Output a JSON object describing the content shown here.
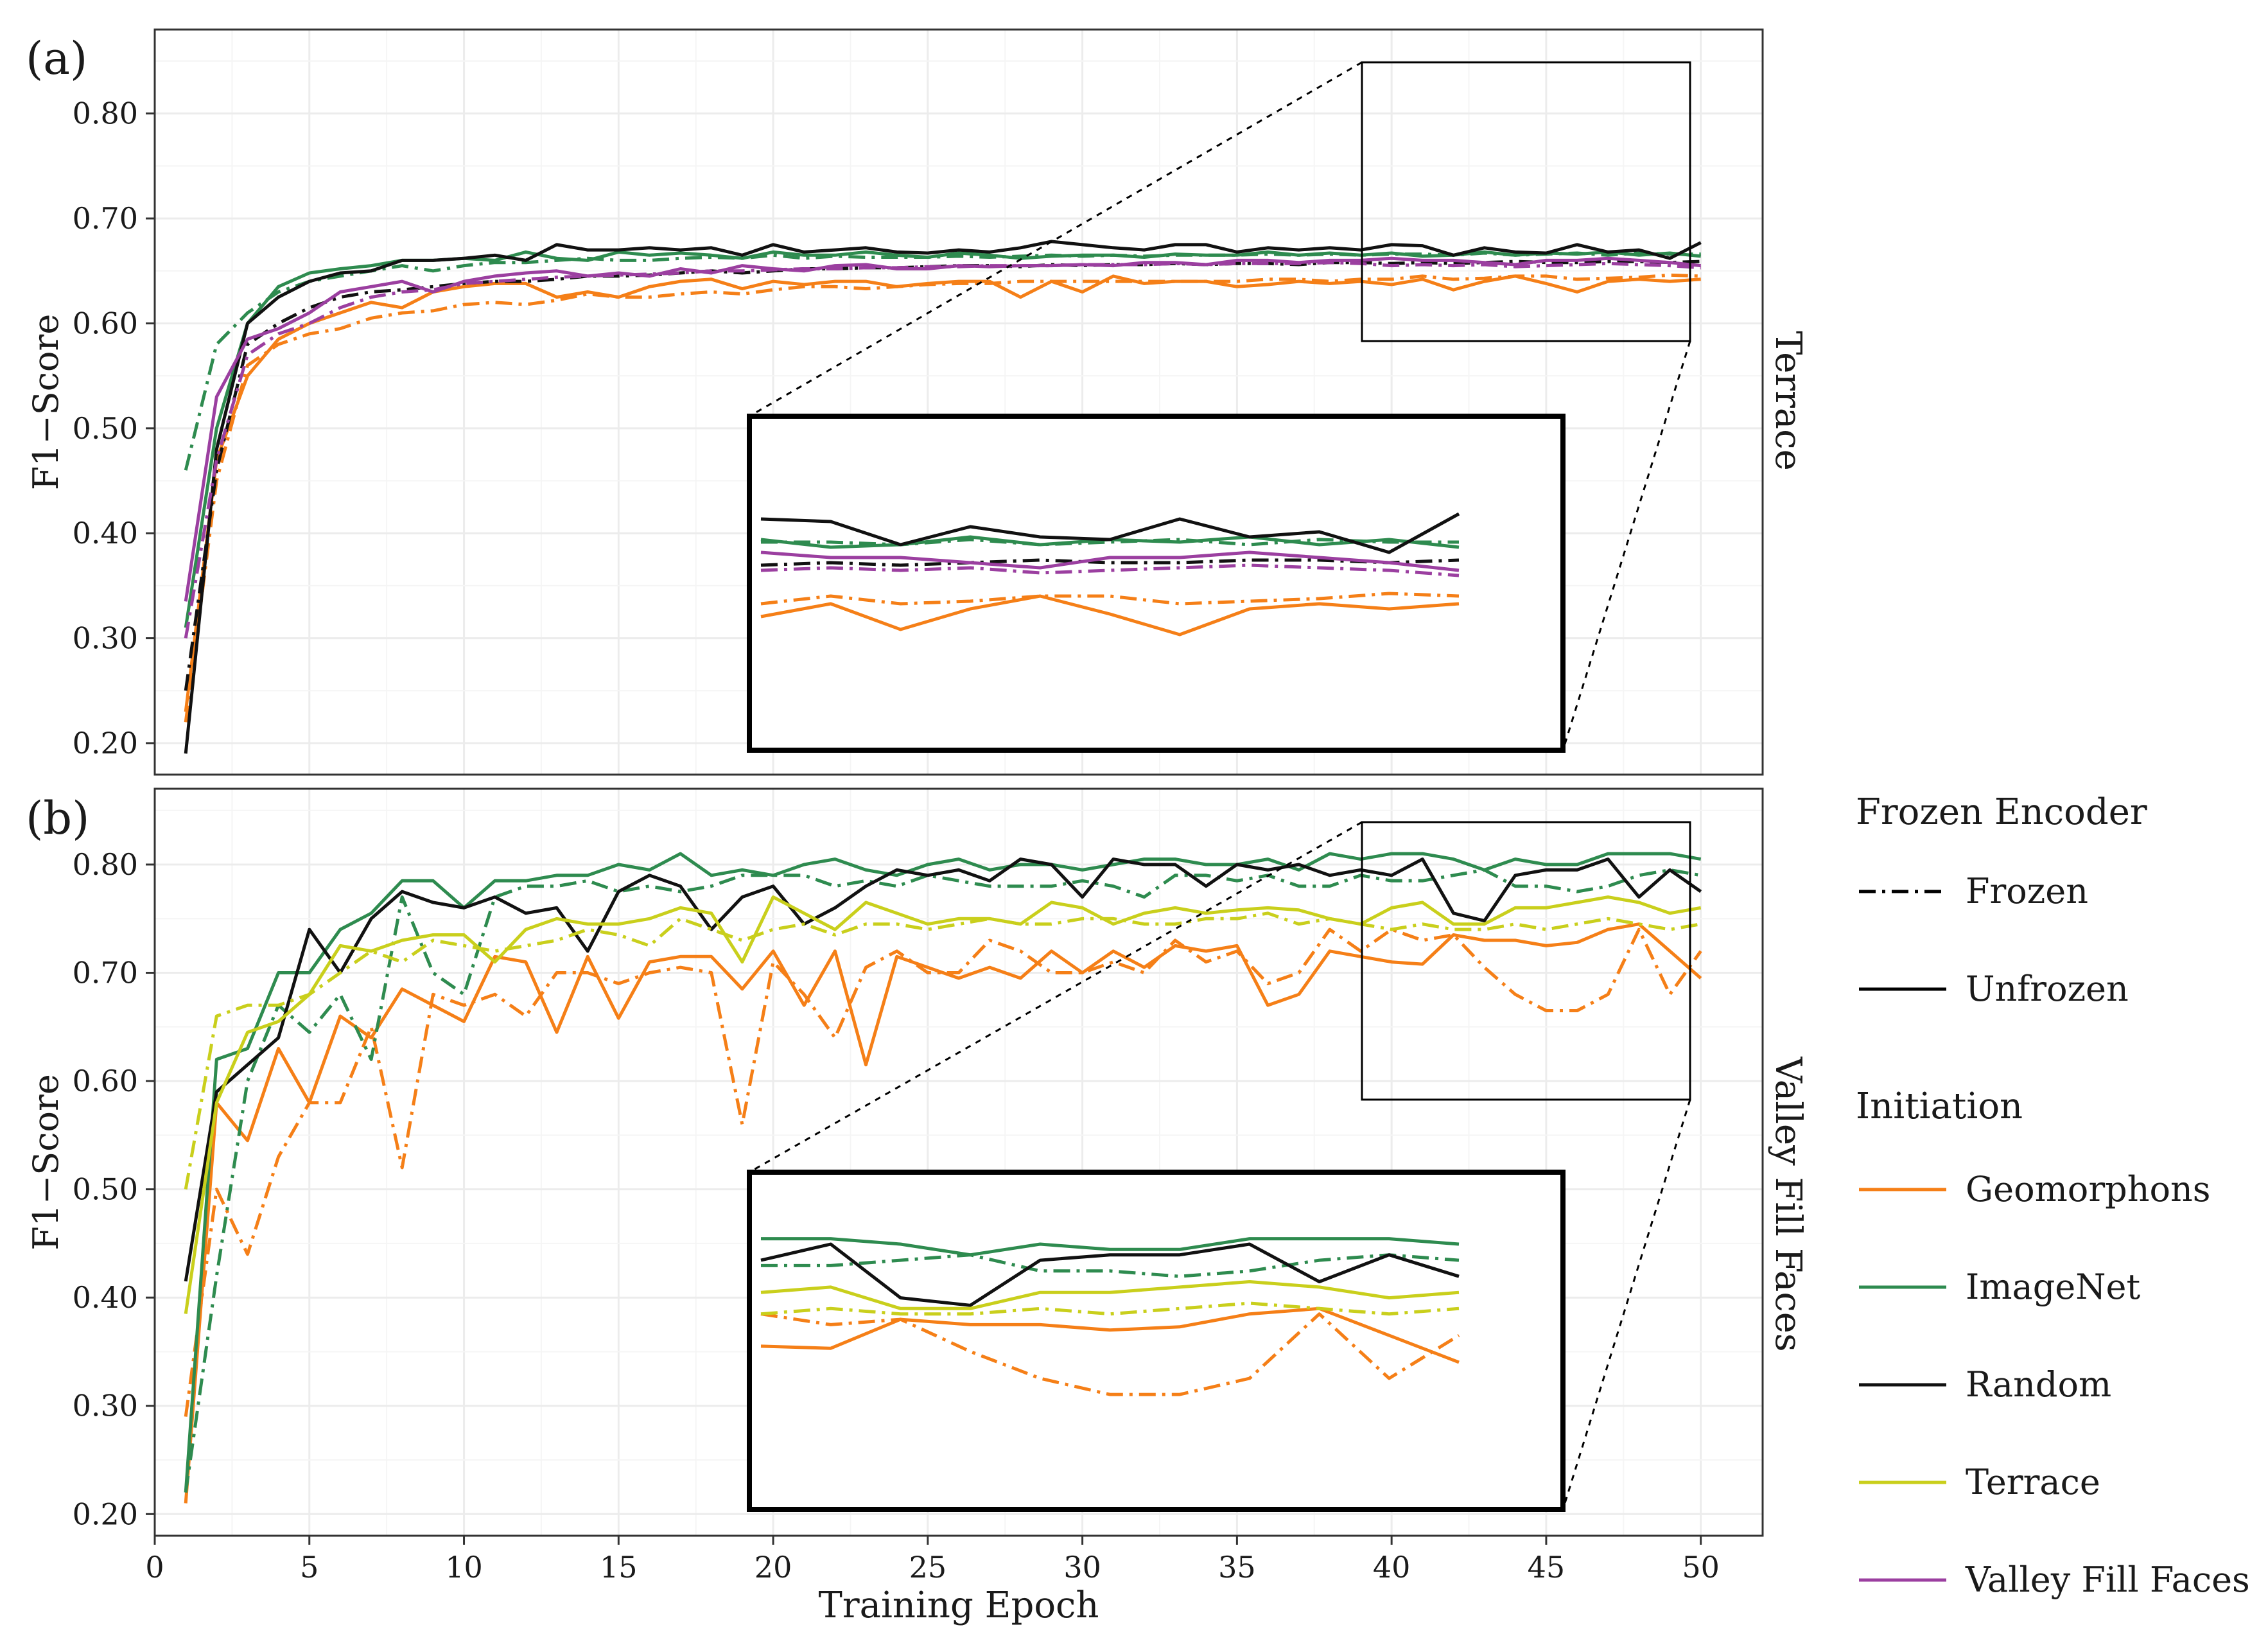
{
  "legend": {
    "frozen_title": "Frozen Encoder",
    "frozen_items": [
      {
        "label": "Frozen",
        "dash": "dotdash"
      },
      {
        "label": "Unfrozen",
        "dash": "solid"
      }
    ],
    "init_title": "Initiation",
    "init_items": [
      {
        "label": "Geomorphons",
        "color": "#f57f17"
      },
      {
        "label": "ImageNet",
        "color": "#2e8b4f"
      },
      {
        "label": "Random",
        "color": "#111111"
      },
      {
        "label": "Terrace",
        "color": "#c9cf1c"
      },
      {
        "label": "Valley Fill Faces",
        "color": "#9b3fa0"
      }
    ]
  },
  "xaxis": {
    "label": "Training Epoch",
    "ticks": [
      "0",
      "5",
      "10",
      "15",
      "20",
      "25",
      "30",
      "35",
      "40",
      "45",
      "50"
    ]
  },
  "chart_data": [
    {
      "type": "line",
      "panel_label": "(a)",
      "strip_label": "Terrace",
      "ylabel": "F1−Score",
      "xlabel": "Training Epoch",
      "xlim": [
        0,
        52
      ],
      "ylim": [
        0.17,
        0.88
      ],
      "yticks": [
        "0.20",
        "0.30",
        "0.40",
        "0.50",
        "0.60",
        "0.70",
        "0.80"
      ],
      "zoom_x_range": [
        40,
        50
      ],
      "zoom_y_range": [
        0.59,
        0.71
      ],
      "series": [
        {
          "name": "Geomorphons",
          "mode": "Unfrozen",
          "color": "#f57f17",
          "dash": "solid",
          "values": [
            0.23,
            0.47,
            0.55,
            0.585,
            0.6,
            0.61,
            0.62,
            0.615,
            0.63,
            0.635,
            0.638,
            0.638,
            0.625,
            0.63,
            0.625,
            0.635,
            0.64,
            0.642,
            0.633,
            0.64,
            0.637,
            0.64,
            0.64,
            0.635,
            0.638,
            0.64,
            0.64,
            0.625,
            0.64,
            0.63,
            0.645,
            0.638,
            0.64,
            0.64,
            0.635,
            0.637,
            0.64,
            0.638,
            0.64,
            0.637,
            0.642,
            0.632,
            0.64,
            0.645,
            0.638,
            0.63,
            0.64,
            0.642,
            0.64,
            0.642
          ]
        },
        {
          "name": "Geomorphons",
          "mode": "Frozen",
          "color": "#f57f17",
          "dash": "dotdash",
          "values": [
            0.22,
            0.45,
            0.56,
            0.58,
            0.59,
            0.595,
            0.605,
            0.61,
            0.612,
            0.618,
            0.62,
            0.618,
            0.622,
            0.628,
            0.625,
            0.625,
            0.628,
            0.63,
            0.628,
            0.632,
            0.635,
            0.635,
            0.633,
            0.635,
            0.637,
            0.638,
            0.638,
            0.64,
            0.64,
            0.64,
            0.64,
            0.64,
            0.64,
            0.64,
            0.64,
            0.642,
            0.642,
            0.64,
            0.642,
            0.642,
            0.645,
            0.642,
            0.643,
            0.645,
            0.645,
            0.642,
            0.643,
            0.644,
            0.646,
            0.645
          ]
        },
        {
          "name": "ImageNet",
          "mode": "Unfrozen",
          "color": "#2e8b4f",
          "dash": "solid",
          "values": [
            0.31,
            0.5,
            0.6,
            0.635,
            0.648,
            0.652,
            0.655,
            0.66,
            0.66,
            0.662,
            0.66,
            0.668,
            0.662,
            0.66,
            0.668,
            0.665,
            0.667,
            0.665,
            0.662,
            0.668,
            0.665,
            0.665,
            0.668,
            0.665,
            0.663,
            0.667,
            0.665,
            0.662,
            0.664,
            0.665,
            0.665,
            0.663,
            0.666,
            0.665,
            0.665,
            0.668,
            0.665,
            0.667,
            0.665,
            0.667,
            0.664,
            0.665,
            0.668,
            0.665,
            0.667,
            0.666,
            0.668,
            0.665,
            0.667,
            0.664
          ]
        },
        {
          "name": "ImageNet",
          "mode": "Frozen",
          "color": "#2e8b4f",
          "dash": "dotdash",
          "values": [
            0.46,
            0.58,
            0.61,
            0.63,
            0.64,
            0.645,
            0.65,
            0.655,
            0.65,
            0.655,
            0.658,
            0.658,
            0.66,
            0.662,
            0.66,
            0.66,
            0.662,
            0.663,
            0.662,
            0.665,
            0.662,
            0.664,
            0.663,
            0.663,
            0.663,
            0.664,
            0.663,
            0.664,
            0.665,
            0.664,
            0.665,
            0.664,
            0.665,
            0.665,
            0.665,
            0.666,
            0.665,
            0.666,
            0.665,
            0.666,
            0.666,
            0.665,
            0.667,
            0.665,
            0.666,
            0.667,
            0.665,
            0.667,
            0.666,
            0.666
          ]
        },
        {
          "name": "Random",
          "mode": "Unfrozen",
          "color": "#111111",
          "dash": "solid",
          "values": [
            0.19,
            0.48,
            0.6,
            0.625,
            0.64,
            0.648,
            0.65,
            0.66,
            0.66,
            0.662,
            0.665,
            0.66,
            0.675,
            0.67,
            0.67,
            0.672,
            0.67,
            0.672,
            0.665,
            0.675,
            0.668,
            0.67,
            0.672,
            0.668,
            0.667,
            0.67,
            0.668,
            0.672,
            0.678,
            0.675,
            0.672,
            0.67,
            0.675,
            0.675,
            0.668,
            0.672,
            0.67,
            0.672,
            0.67,
            0.675,
            0.674,
            0.665,
            0.672,
            0.668,
            0.667,
            0.675,
            0.668,
            0.67,
            0.662,
            0.677
          ]
        },
        {
          "name": "Random",
          "mode": "Frozen",
          "color": "#111111",
          "dash": "dotdash",
          "values": [
            0.25,
            0.46,
            0.58,
            0.6,
            0.615,
            0.625,
            0.63,
            0.632,
            0.635,
            0.638,
            0.64,
            0.64,
            0.642,
            0.645,
            0.645,
            0.646,
            0.648,
            0.65,
            0.648,
            0.65,
            0.652,
            0.652,
            0.653,
            0.653,
            0.654,
            0.655,
            0.655,
            0.654,
            0.656,
            0.655,
            0.656,
            0.656,
            0.657,
            0.656,
            0.657,
            0.657,
            0.656,
            0.658,
            0.658,
            0.657,
            0.658,
            0.657,
            0.658,
            0.659,
            0.658,
            0.658,
            0.659,
            0.659,
            0.658,
            0.659
          ]
        },
        {
          "name": "Valley Fill Faces",
          "mode": "Unfrozen",
          "color": "#9b3fa0",
          "dash": "solid",
          "values": [
            0.335,
            0.53,
            0.585,
            0.595,
            0.61,
            0.63,
            0.635,
            0.64,
            0.63,
            0.64,
            0.645,
            0.648,
            0.65,
            0.645,
            0.648,
            0.645,
            0.652,
            0.648,
            0.655,
            0.652,
            0.65,
            0.655,
            0.656,
            0.652,
            0.652,
            0.655,
            0.654,
            0.655,
            0.655,
            0.656,
            0.655,
            0.658,
            0.658,
            0.656,
            0.66,
            0.66,
            0.658,
            0.66,
            0.66,
            0.662,
            0.66,
            0.66,
            0.658,
            0.656,
            0.66,
            0.66,
            0.662,
            0.66,
            0.658,
            0.655
          ]
        },
        {
          "name": "Valley Fill Faces",
          "mode": "Frozen",
          "color": "#9b3fa0",
          "dash": "dotdash",
          "values": [
            0.3,
            0.47,
            0.57,
            0.59,
            0.6,
            0.615,
            0.625,
            0.63,
            0.632,
            0.638,
            0.64,
            0.642,
            0.644,
            0.645,
            0.646,
            0.647,
            0.648,
            0.65,
            0.65,
            0.651,
            0.652,
            0.652,
            0.653,
            0.653,
            0.654,
            0.654,
            0.655,
            0.655,
            0.655,
            0.656,
            0.656,
            0.656,
            0.657,
            0.656,
            0.657,
            0.657,
            0.657,
            0.658,
            0.657,
            0.655,
            0.656,
            0.655,
            0.656,
            0.654,
            0.655,
            0.656,
            0.657,
            0.656,
            0.655,
            0.653
          ]
        }
      ]
    },
    {
      "type": "line",
      "panel_label": "(b)",
      "strip_label": "Valley Fill Faces",
      "ylabel": "F1−Score",
      "xlabel": "Training Epoch",
      "xlim": [
        0,
        52
      ],
      "ylim": [
        0.18,
        0.87
      ],
      "yticks": [
        "0.20",
        "0.30",
        "0.40",
        "0.50",
        "0.60",
        "0.70",
        "0.80"
      ],
      "zoom_x_range": [
        40,
        50
      ],
      "zoom_y_range": [
        0.57,
        0.86
      ],
      "series": [
        {
          "name": "Geomorphons",
          "mode": "Unfrozen",
          "color": "#f57f17",
          "dash": "solid",
          "values": [
            0.21,
            0.58,
            0.545,
            0.63,
            0.58,
            0.66,
            0.64,
            0.685,
            0.67,
            0.655,
            0.715,
            0.71,
            0.645,
            0.715,
            0.658,
            0.71,
            0.715,
            0.715,
            0.685,
            0.72,
            0.67,
            0.72,
            0.615,
            0.715,
            0.705,
            0.695,
            0.705,
            0.695,
            0.72,
            0.7,
            0.72,
            0.705,
            0.725,
            0.72,
            0.725,
            0.67,
            0.68,
            0.72,
            0.715,
            0.71,
            0.708,
            0.735,
            0.73,
            0.73,
            0.725,
            0.728,
            0.74,
            0.745,
            0.72,
            0.695
          ]
        },
        {
          "name": "Geomorphons",
          "mode": "Frozen",
          "color": "#f57f17",
          "dash": "dotdash",
          "values": [
            0.29,
            0.5,
            0.44,
            0.53,
            0.58,
            0.58,
            0.65,
            0.52,
            0.68,
            0.67,
            0.68,
            0.66,
            0.7,
            0.7,
            0.69,
            0.7,
            0.705,
            0.7,
            0.56,
            0.71,
            0.68,
            0.64,
            0.705,
            0.72,
            0.7,
            0.7,
            0.73,
            0.72,
            0.7,
            0.7,
            0.71,
            0.7,
            0.73,
            0.71,
            0.72,
            0.69,
            0.7,
            0.74,
            0.72,
            0.74,
            0.73,
            0.735,
            0.705,
            0.68,
            0.665,
            0.665,
            0.68,
            0.74,
            0.68,
            0.72
          ]
        },
        {
          "name": "ImageNet",
          "mode": "Unfrozen",
          "color": "#2e8b4f",
          "dash": "solid",
          "values": [
            0.22,
            0.62,
            0.63,
            0.7,
            0.7,
            0.74,
            0.755,
            0.785,
            0.785,
            0.76,
            0.785,
            0.785,
            0.79,
            0.79,
            0.8,
            0.795,
            0.81,
            0.79,
            0.795,
            0.79,
            0.8,
            0.805,
            0.795,
            0.79,
            0.8,
            0.805,
            0.795,
            0.8,
            0.8,
            0.795,
            0.8,
            0.805,
            0.805,
            0.8,
            0.8,
            0.805,
            0.795,
            0.81,
            0.805,
            0.81,
            0.81,
            0.805,
            0.795,
            0.805,
            0.8,
            0.8,
            0.81,
            0.81,
            0.81,
            0.805
          ]
        },
        {
          "name": "ImageNet",
          "mode": "Frozen",
          "color": "#2e8b4f",
          "dash": "dotdash",
          "values": [
            0.22,
            0.42,
            0.6,
            0.67,
            0.645,
            0.68,
            0.62,
            0.77,
            0.7,
            0.68,
            0.77,
            0.78,
            0.78,
            0.785,
            0.775,
            0.78,
            0.775,
            0.78,
            0.79,
            0.79,
            0.79,
            0.78,
            0.785,
            0.78,
            0.79,
            0.785,
            0.78,
            0.78,
            0.78,
            0.785,
            0.78,
            0.77,
            0.79,
            0.79,
            0.785,
            0.79,
            0.78,
            0.78,
            0.79,
            0.785,
            0.785,
            0.79,
            0.795,
            0.78,
            0.78,
            0.775,
            0.78,
            0.79,
            0.795,
            0.79
          ]
        },
        {
          "name": "Random",
          "mode": "Unfrozen",
          "color": "#111111",
          "dash": "solid",
          "values": [
            0.415,
            0.59,
            0.615,
            0.64,
            0.74,
            0.7,
            0.75,
            0.775,
            0.765,
            0.76,
            0.77,
            0.755,
            0.76,
            0.72,
            0.775,
            0.79,
            0.78,
            0.74,
            0.77,
            0.78,
            0.745,
            0.76,
            0.78,
            0.795,
            0.79,
            0.795,
            0.785,
            0.805,
            0.8,
            0.77,
            0.805,
            0.8,
            0.8,
            0.78,
            0.8,
            0.795,
            0.8,
            0.79,
            0.795,
            0.79,
            0.805,
            0.755,
            0.748,
            0.79,
            0.795,
            0.795,
            0.805,
            0.77,
            0.795,
            0.775
          ]
        },
        {
          "name": "Terrace",
          "mode": "Unfrozen",
          "color": "#c9cf1c",
          "dash": "solid",
          "values": [
            0.385,
            0.58,
            0.645,
            0.655,
            0.68,
            0.725,
            0.72,
            0.73,
            0.735,
            0.735,
            0.71,
            0.74,
            0.75,
            0.745,
            0.745,
            0.75,
            0.76,
            0.755,
            0.71,
            0.77,
            0.755,
            0.74,
            0.765,
            0.755,
            0.745,
            0.75,
            0.75,
            0.745,
            0.765,
            0.76,
            0.745,
            0.755,
            0.76,
            0.755,
            0.758,
            0.76,
            0.758,
            0.75,
            0.745,
            0.76,
            0.765,
            0.745,
            0.745,
            0.76,
            0.76,
            0.765,
            0.77,
            0.765,
            0.755,
            0.76
          ]
        },
        {
          "name": "Terrace",
          "mode": "Frozen",
          "color": "#c9cf1c",
          "dash": "dotdash",
          "values": [
            0.5,
            0.66,
            0.67,
            0.67,
            0.68,
            0.7,
            0.72,
            0.71,
            0.73,
            0.725,
            0.72,
            0.725,
            0.73,
            0.74,
            0.735,
            0.725,
            0.75,
            0.74,
            0.73,
            0.74,
            0.745,
            0.735,
            0.745,
            0.745,
            0.74,
            0.745,
            0.75,
            0.745,
            0.745,
            0.75,
            0.75,
            0.745,
            0.745,
            0.75,
            0.75,
            0.755,
            0.745,
            0.75,
            0.745,
            0.74,
            0.745,
            0.74,
            0.74,
            0.745,
            0.74,
            0.745,
            0.75,
            0.745,
            0.74,
            0.745
          ]
        }
      ]
    }
  ]
}
